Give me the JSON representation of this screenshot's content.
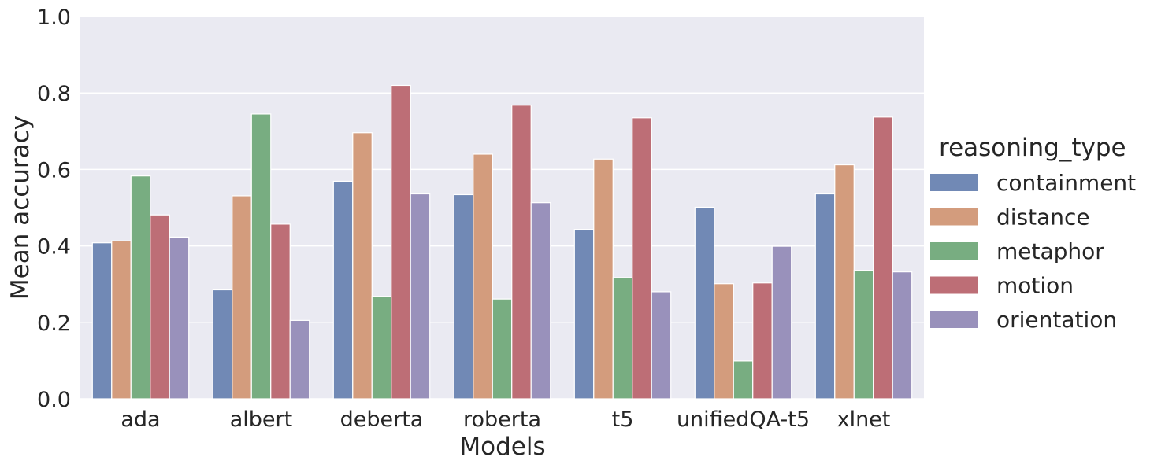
{
  "chart_data": {
    "type": "bar",
    "title": "",
    "xlabel": "Models",
    "ylabel": "Mean accuracy",
    "ylim": [
      0,
      1.0
    ],
    "yticks": [
      "0.0",
      "0.2",
      "0.4",
      "0.6",
      "0.8",
      "1.0"
    ],
    "grid": true,
    "legend": {
      "title": "reasoning_type",
      "placement": "right"
    },
    "categories": [
      "ada",
      "albert",
      "deberta",
      "roberta",
      "t5",
      "unifiedQA-t5",
      "xlnet"
    ],
    "series": [
      {
        "name": "containment",
        "color": "#7189b5",
        "values": [
          0.408,
          0.285,
          0.569,
          0.534,
          0.443,
          0.501,
          0.536
        ]
      },
      {
        "name": "distance",
        "color": "#d39c7d",
        "values": [
          0.413,
          0.531,
          0.696,
          0.64,
          0.627,
          0.301,
          0.612
        ]
      },
      {
        "name": "metaphor",
        "color": "#78ad81",
        "values": [
          0.583,
          0.745,
          0.268,
          0.261,
          0.317,
          0.099,
          0.336
        ]
      },
      {
        "name": "motion",
        "color": "#bd6e76",
        "values": [
          0.481,
          0.457,
          0.82,
          0.768,
          0.735,
          0.303,
          0.737
        ]
      },
      {
        "name": "orientation",
        "color": "#9991bb",
        "values": [
          0.423,
          0.205,
          0.536,
          0.513,
          0.28,
          0.399,
          0.332
        ]
      }
    ]
  }
}
